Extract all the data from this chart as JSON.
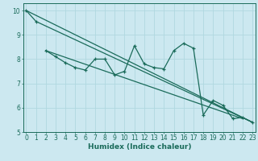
{
  "xlabel": "Humidex (Indice chaleur)",
  "xlim": [
    -0.3,
    23.3
  ],
  "ylim": [
    5.0,
    10.3
  ],
  "xticks": [
    0,
    1,
    2,
    3,
    4,
    5,
    6,
    7,
    8,
    9,
    10,
    11,
    12,
    13,
    14,
    15,
    16,
    17,
    18,
    19,
    20,
    21,
    22,
    23
  ],
  "yticks": [
    5,
    6,
    7,
    8,
    9,
    10
  ],
  "bg_color": "#cce8f0",
  "line_color": "#1a6b5a",
  "grid_color": "#b0d8e0",
  "series_x": [
    2,
    3,
    4,
    5,
    6,
    7,
    8,
    9,
    10,
    11,
    12,
    13,
    14,
    15,
    16,
    17,
    18,
    19,
    20,
    21,
    22,
    23
  ],
  "series_y": [
    8.35,
    8.1,
    7.85,
    7.65,
    7.55,
    8.0,
    8.0,
    7.35,
    7.5,
    8.55,
    7.8,
    7.65,
    7.6,
    8.35,
    8.65,
    8.45,
    5.7,
    6.3,
    6.1,
    5.55,
    5.6,
    5.4
  ],
  "trend1_x": [
    0,
    23
  ],
  "trend1_y": [
    10.0,
    5.4
  ],
  "trend2_x": [
    1,
    23
  ],
  "trend2_y": [
    9.55,
    5.4
  ],
  "trend3_x": [
    2,
    22
  ],
  "trend3_y": [
    8.35,
    5.55
  ]
}
